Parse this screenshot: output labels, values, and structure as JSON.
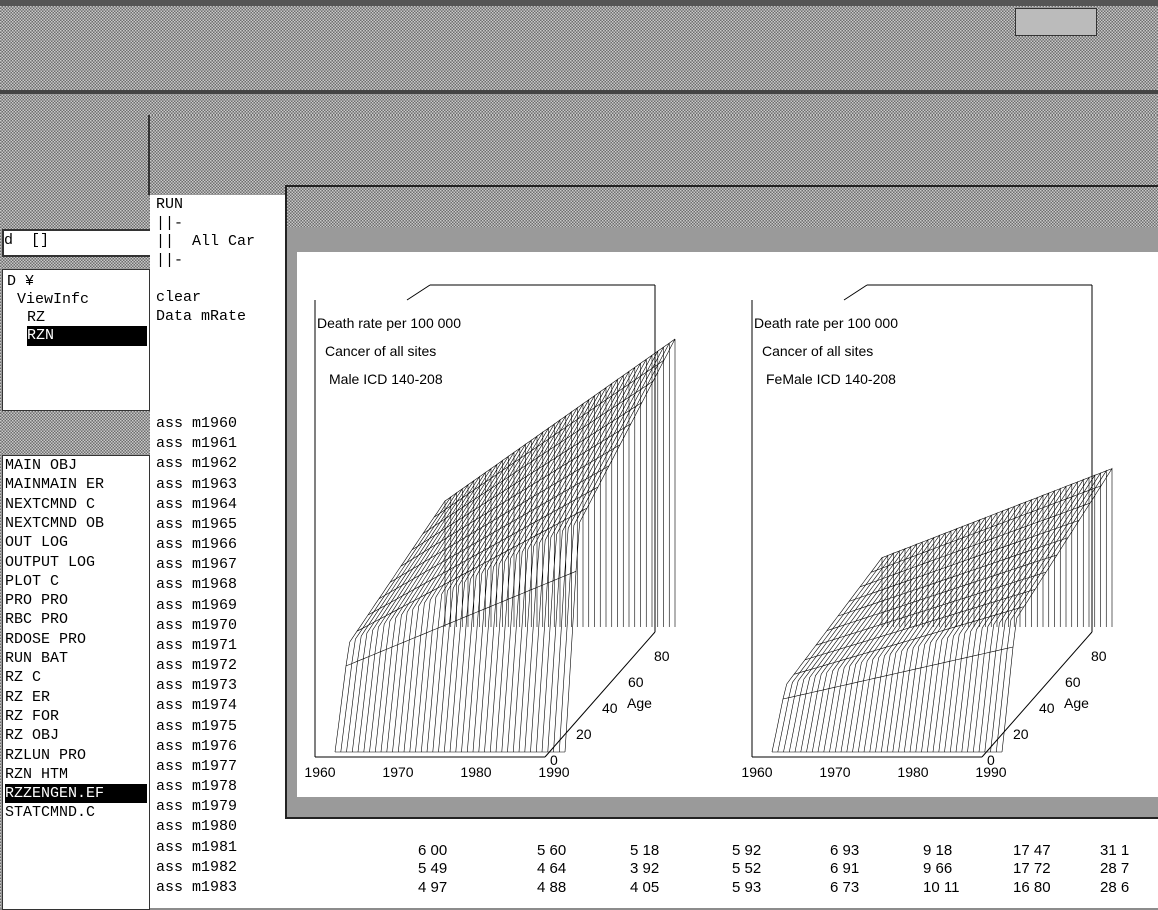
{
  "file_panel": {
    "drive": "d  []",
    "tree": [
      "D ¥",
      "ViewInfc",
      "RZ",
      "RZN"
    ],
    "files": [
      "MAIN OBJ",
      "MAINMAIN ER",
      "NEXTCMND C",
      "NEXTCMND OB",
      "OUT LOG",
      "OUTPUT LOG",
      "PLOT C",
      "PRO PRO",
      "RBC PRO",
      "RDOSE PRO",
      "RUN BAT",
      "RZ C",
      "RZ ER",
      "RZ FOR",
      "RZ OBJ",
      "RZLUN PRO",
      "RZN HTM",
      "RZZENGEN.EF",
      "STATCMND.C"
    ]
  },
  "editor": {
    "lines": [
      "RUN",
      "||-",
      "||  All Car",
      "||-",
      "",
      "clear",
      "Data mRate"
    ],
    "rows": [
      "ass m1960",
      "ass m1961",
      "ass m1962",
      "ass m1963",
      "ass m1964",
      "ass m1965",
      "ass m1966",
      "ass m1967",
      "ass m1968",
      "ass m1969",
      "ass m1970",
      "ass m1971",
      "ass m1972",
      "ass m1973",
      "ass m1974",
      "ass m1975",
      "ass m1976",
      "ass m1977",
      "ass m1978",
      "ass m1979",
      "ass m1980",
      "ass m1981",
      "ass m1982",
      "ass m1983"
    ],
    "table": [
      [
        "6 00",
        "5 60",
        "5 18",
        "5 92",
        "6 93",
        "9 18",
        "17 47",
        "31 1"
      ],
      [
        "5 49",
        "4 64",
        "3 92",
        "5 52",
        "6 91",
        "9 66",
        "17 72",
        "28 7"
      ],
      [
        "4 97",
        "4 88",
        "4 05",
        "5 93",
        "6 73",
        "10 11",
        "16 80",
        "28 6"
      ]
    ]
  },
  "plots": [
    {
      "lines": [
        "Death rate per 100 000",
        "Cancer of all sites",
        "Male  ICD 140-208"
      ],
      "x_ticks": [
        "1960",
        "1970",
        "1980",
        "1990"
      ],
      "age_ticks": [
        "0",
        "20",
        "40",
        "60",
        "80"
      ],
      "age_label": "Age"
    },
    {
      "lines": [
        "Death rate per 100 000",
        "Cancer of all sites",
        "FeMale  ICD 140-208"
      ],
      "x_ticks": [
        "1960",
        "1970",
        "1980",
        "1990"
      ],
      "age_ticks": [
        "0",
        "20",
        "40",
        "60",
        "80"
      ],
      "age_label": "Age"
    }
  ]
}
